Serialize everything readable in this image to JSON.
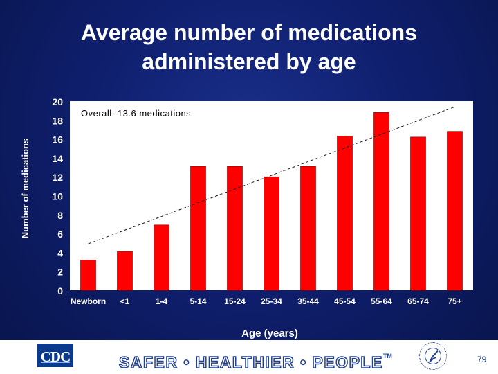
{
  "slide": {
    "title_line1": "Average number of medications",
    "title_line2": "administered by age",
    "page_number": "79"
  },
  "footer": {
    "logo_text": "CDC",
    "tagline": "SAFER • HEALTHIER • PEOPLE",
    "tagline_mark": "TM",
    "seal_icon": "hhs-seal-icon"
  },
  "colors": {
    "background": "#0f1f6e",
    "bar": "#ff0000",
    "plot_area": "#ffffff",
    "text": "#ffffff",
    "trendline": "#1a1a1a"
  },
  "chart_data": {
    "type": "bar",
    "title": "",
    "annotation": "Overall: 13.6 medications",
    "xlabel": "Age (years)",
    "ylabel": "Number of medications",
    "categories": [
      "Newborn",
      "<1",
      "1-4",
      "5-14",
      "15-24",
      "25-34",
      "35-44",
      "45-54",
      "55-64",
      "65-74",
      "75+"
    ],
    "values": [
      3.2,
      4.1,
      6.9,
      13.1,
      13.1,
      12.0,
      13.1,
      16.3,
      18.8,
      16.2,
      16.8
    ],
    "ylim": [
      0,
      20
    ],
    "yticks": [
      0,
      2,
      4,
      6,
      8,
      10,
      12,
      14,
      16,
      18,
      20
    ],
    "trendline": {
      "style": "dashed",
      "start": 4.9,
      "end": 19.4
    },
    "grid": false,
    "legend": "none"
  }
}
